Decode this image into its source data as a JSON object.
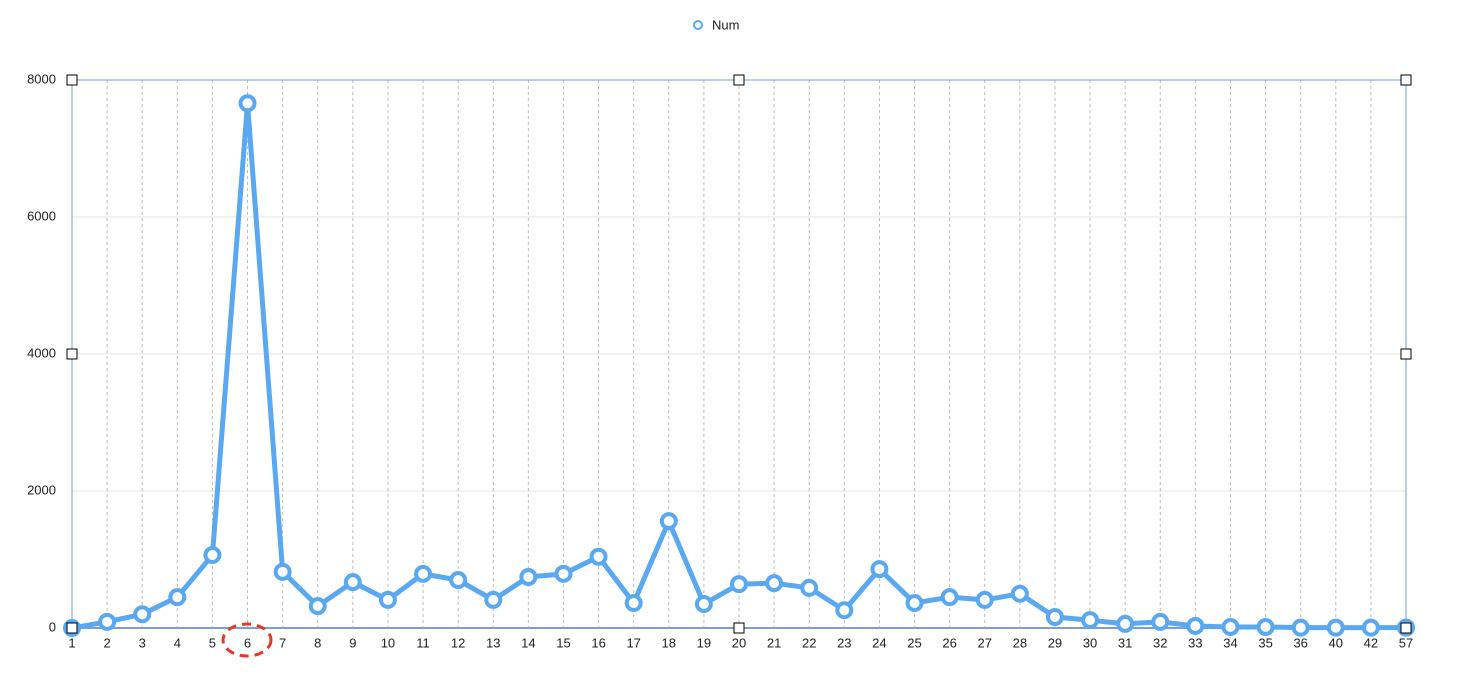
{
  "chart_data": {
    "type": "line",
    "categories": [
      "1",
      "2",
      "3",
      "4",
      "5",
      "6",
      "7",
      "8",
      "9",
      "10",
      "11",
      "12",
      "13",
      "14",
      "15",
      "16",
      "17",
      "18",
      "19",
      "20",
      "21",
      "22",
      "23",
      "24",
      "25",
      "26",
      "27",
      "28",
      "29",
      "30",
      "31",
      "32",
      "33",
      "34",
      "35",
      "36",
      "40",
      "42",
      "57"
    ],
    "series": [
      {
        "name": "Num",
        "color": "#5aa9f0",
        "values": [
          0,
          90,
          200,
          450,
          1065,
          7660,
          820,
          320,
          670,
          410,
          790,
          700,
          410,
          745,
          790,
          1040,
          365,
          1560,
          350,
          640,
          655,
          585,
          260,
          860,
          365,
          450,
          410,
          500,
          160,
          115,
          60,
          90,
          30,
          15,
          15,
          5,
          5,
          5,
          5
        ]
      }
    ],
    "ylim": [
      0,
      8000
    ],
    "yticks": [
      0,
      2000,
      4000,
      6000,
      8000
    ],
    "grid": true
  }
}
